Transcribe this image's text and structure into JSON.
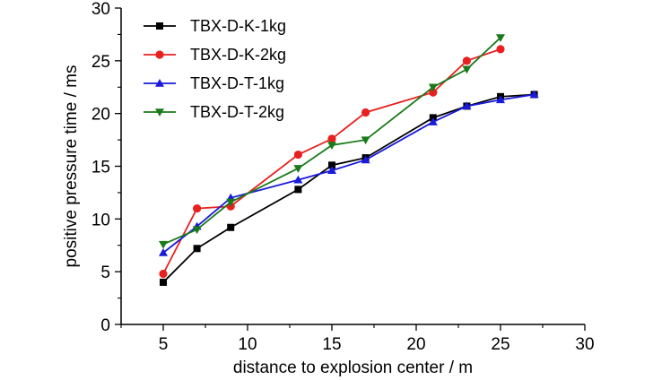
{
  "chart_data": {
    "type": "line",
    "title": "",
    "xlabel": "distance to explosion center / m",
    "ylabel": "positive pressure time / ms",
    "xlim": [
      2.5,
      30
    ],
    "ylim": [
      0,
      30
    ],
    "xticks": [
      5,
      10,
      15,
      20,
      25,
      30
    ],
    "yticks": [
      0,
      5,
      10,
      15,
      20,
      25,
      30
    ],
    "grid": false,
    "legend_position": "top-left",
    "series": [
      {
        "name": "TBX-D-K-1kg",
        "color": "#000000",
        "marker": "square",
        "x": [
          5,
          7,
          9,
          13,
          15,
          17,
          21,
          23,
          25,
          27
        ],
        "y": [
          4.0,
          7.2,
          9.2,
          12.8,
          15.1,
          15.8,
          19.6,
          20.7,
          21.6,
          21.8
        ]
      },
      {
        "name": "TBX-D-K-2kg",
        "color": "#e8201f",
        "marker": "circle",
        "x": [
          5,
          7,
          9,
          13,
          15,
          17,
          21,
          23,
          25
        ],
        "y": [
          4.8,
          11.0,
          11.2,
          16.1,
          17.6,
          20.1,
          22.0,
          25.0,
          26.1
        ]
      },
      {
        "name": "TBX-D-T-1kg",
        "color": "#1a1adb",
        "marker": "triangle-up",
        "x": [
          5,
          7,
          9,
          13,
          15,
          17,
          21,
          23,
          25,
          27
        ],
        "y": [
          6.8,
          9.3,
          12.0,
          13.7,
          14.6,
          15.6,
          19.2,
          20.7,
          21.3,
          21.8
        ]
      },
      {
        "name": "TBX-D-T-2kg",
        "color": "#1a7a1a",
        "marker": "triangle-down",
        "x": [
          5,
          7,
          9,
          13,
          15,
          17,
          21,
          23,
          25
        ],
        "y": [
          7.6,
          9.0,
          11.6,
          14.8,
          17.0,
          17.5,
          22.5,
          24.2,
          27.2
        ]
      }
    ]
  }
}
